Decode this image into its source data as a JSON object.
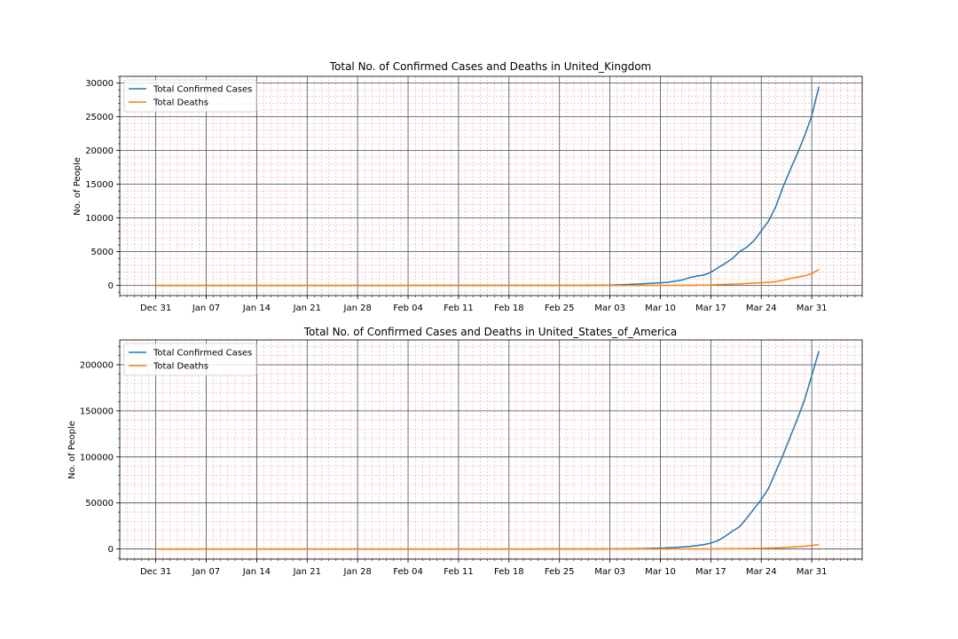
{
  "figure": {
    "colors": {
      "cases": "#1f77b4",
      "deaths": "#ff7f0e",
      "major_grid": "#4a4f5e",
      "minor_grid": "#f4a6a6"
    }
  },
  "chart_data": [
    {
      "type": "line",
      "title": "Total No. of Confirmed Cases and Deaths in United_Kingdom",
      "xlabel": "",
      "ylabel": "No. of People",
      "x_ticks": [
        "Dec 31",
        "Jan 07",
        "Jan 14",
        "Jan 21",
        "Jan 28",
        "Feb 04",
        "Feb 11",
        "Feb 18",
        "Feb 25",
        "Mar 03",
        "Mar 10",
        "Mar 17",
        "Mar 24",
        "Mar 31"
      ],
      "y_ticks": [
        0,
        5000,
        10000,
        15000,
        20000,
        25000,
        30000
      ],
      "ylim": [
        -1500,
        31000
      ],
      "xlim": [
        "2019-12-26",
        "2020-04-07"
      ],
      "grid": true,
      "legend": "upper-left",
      "series": [
        {
          "name": "Total Confirmed Cases",
          "color": "#1f77b4",
          "points": [
            [
              "2019-12-31",
              0
            ],
            [
              "2020-01-31",
              2
            ],
            [
              "2020-02-20",
              9
            ],
            [
              "2020-02-28",
              20
            ],
            [
              "2020-03-03",
              51
            ],
            [
              "2020-03-05",
              115
            ],
            [
              "2020-03-07",
              206
            ],
            [
              "2020-03-09",
              319
            ],
            [
              "2020-03-11",
              456
            ],
            [
              "2020-03-13",
              798
            ],
            [
              "2020-03-14",
              1140
            ],
            [
              "2020-03-15",
              1372
            ],
            [
              "2020-03-16",
              1543
            ],
            [
              "2020-03-17",
              1950
            ],
            [
              "2020-03-18",
              2626
            ],
            [
              "2020-03-19",
              3269
            ],
            [
              "2020-03-20",
              3983
            ],
            [
              "2020-03-21",
              5018
            ],
            [
              "2020-03-22",
              5683
            ],
            [
              "2020-03-23",
              6650
            ],
            [
              "2020-03-24",
              8077
            ],
            [
              "2020-03-25",
              9529
            ],
            [
              "2020-03-26",
              11658
            ],
            [
              "2020-03-27",
              14543
            ],
            [
              "2020-03-28",
              17089
            ],
            [
              "2020-03-29",
              19522
            ],
            [
              "2020-03-30",
              22141
            ],
            [
              "2020-03-31",
              25150
            ],
            [
              "2020-04-01",
              29474
            ]
          ]
        },
        {
          "name": "Total Deaths",
          "color": "#ff7f0e",
          "points": [
            [
              "2019-12-31",
              0
            ],
            [
              "2020-03-05",
              1
            ],
            [
              "2020-03-10",
              6
            ],
            [
              "2020-03-14",
              21
            ],
            [
              "2020-03-17",
              55
            ],
            [
              "2020-03-19",
              137
            ],
            [
              "2020-03-21",
              233
            ],
            [
              "2020-03-23",
              335
            ],
            [
              "2020-03-25",
              465
            ],
            [
              "2020-03-26",
              578
            ],
            [
              "2020-03-27",
              759
            ],
            [
              "2020-03-28",
              1019
            ],
            [
              "2020-03-29",
              1228
            ],
            [
              "2020-03-30",
              1408
            ],
            [
              "2020-03-31",
              1789
            ],
            [
              "2020-04-01",
              2352
            ]
          ]
        }
      ]
    },
    {
      "type": "line",
      "title": "Total No. of Confirmed Cases and Deaths in United_States_of_America",
      "xlabel": "",
      "ylabel": "No. of People",
      "x_ticks": [
        "Dec 31",
        "Jan 07",
        "Jan 14",
        "Jan 21",
        "Jan 28",
        "Feb 04",
        "Feb 11",
        "Feb 18",
        "Feb 25",
        "Mar 03",
        "Mar 10",
        "Mar 17",
        "Mar 24",
        "Mar 31"
      ],
      "y_ticks": [
        0,
        50000,
        100000,
        150000,
        200000
      ],
      "ylim": [
        -11000,
        227000
      ],
      "xlim": [
        "2019-12-26",
        "2020-04-07"
      ],
      "grid": true,
      "legend": "upper-left",
      "series": [
        {
          "name": "Total Confirmed Cases",
          "color": "#1f77b4",
          "points": [
            [
              "2019-12-31",
              0
            ],
            [
              "2020-01-21",
              1
            ],
            [
              "2020-02-20",
              15
            ],
            [
              "2020-03-01",
              75
            ],
            [
              "2020-03-05",
              217
            ],
            [
              "2020-03-08",
              537
            ],
            [
              "2020-03-10",
              959
            ],
            [
              "2020-03-12",
              1663
            ],
            [
              "2020-03-14",
              2726
            ],
            [
              "2020-03-16",
              4632
            ],
            [
              "2020-03-17",
              6421
            ],
            [
              "2020-03-18",
              9197
            ],
            [
              "2020-03-19",
              13789
            ],
            [
              "2020-03-20",
              19383
            ],
            [
              "2020-03-21",
              24207
            ],
            [
              "2020-03-22",
              33566
            ],
            [
              "2020-03-23",
              43734
            ],
            [
              "2020-03-24",
              53740
            ],
            [
              "2020-03-25",
              65778
            ],
            [
              "2020-03-26",
              83836
            ],
            [
              "2020-03-27",
              101657
            ],
            [
              "2020-03-28",
              121478
            ],
            [
              "2020-03-29",
              140886
            ],
            [
              "2020-03-30",
              161807
            ],
            [
              "2020-03-31",
              188172
            ],
            [
              "2020-04-01",
              215003
            ]
          ]
        },
        {
          "name": "Total Deaths",
          "color": "#ff7f0e",
          "points": [
            [
              "2019-12-31",
              0
            ],
            [
              "2020-03-01",
              1
            ],
            [
              "2020-03-08",
              21
            ],
            [
              "2020-03-12",
              41
            ],
            [
              "2020-03-16",
              86
            ],
            [
              "2020-03-18",
              149
            ],
            [
              "2020-03-20",
              260
            ],
            [
              "2020-03-22",
              427
            ],
            [
              "2020-03-24",
              706
            ],
            [
              "2020-03-26",
              1209
            ],
            [
              "2020-03-27",
              1581
            ],
            [
              "2020-03-28",
              2026
            ],
            [
              "2020-03-29",
              2467
            ],
            [
              "2020-03-30",
              2978
            ],
            [
              "2020-03-31",
              3873
            ],
            [
              "2020-04-01",
              4757
            ]
          ]
        }
      ]
    }
  ]
}
